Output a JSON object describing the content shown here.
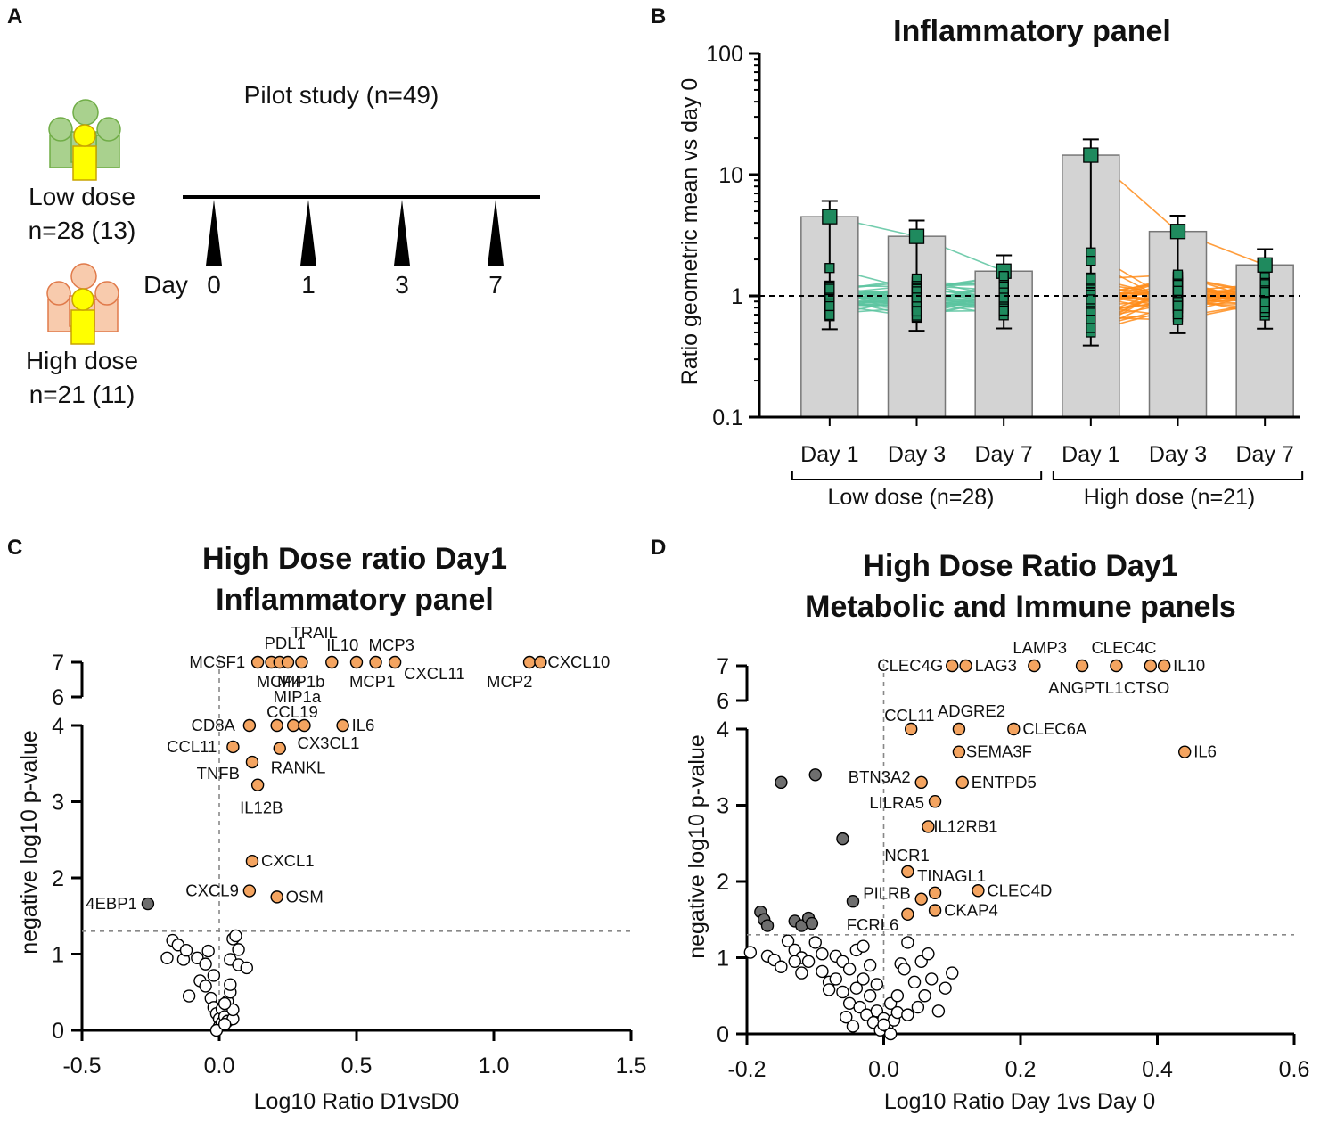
{
  "panel_letters": [
    "A",
    "B",
    "C",
    "D"
  ],
  "panel_a": {
    "title": "Pilot study (n=49)",
    "low_dose": {
      "label": "Low dose",
      "n": "n=28 (13)"
    },
    "high_dose": {
      "label": "High dose",
      "n": "n=21 (11)"
    },
    "day_label": "Day",
    "days": [
      "0",
      "1",
      "3",
      "7"
    ],
    "colors": {
      "low": "#a9d18e",
      "low_stroke": "#70ad47",
      "high": "#f8cbad",
      "high_stroke": "#e07a4a",
      "center": "#ffff00",
      "center_stroke": "#c9a400"
    }
  },
  "chart_data": [
    {
      "id": "B",
      "type": "bar",
      "title": "Inflammatory panel",
      "ylabel": "Ratio geometric mean vs day 0",
      "yscale": "log",
      "ylim": [
        0.1,
        100
      ],
      "yticks": [
        "0.1",
        "1",
        "10",
        "100"
      ],
      "reference_line": 1,
      "categories": [
        "Day 1",
        "Day 3",
        "Day 7",
        "Day 1",
        "Day 3",
        "Day 7"
      ],
      "groups": [
        {
          "label": "Low dose (n=28)",
          "line_color": "#5cc4a0"
        },
        {
          "label": "High dose (n=21)",
          "line_color": "#ff8c1a"
        }
      ],
      "bar_values": [
        4.5,
        3.1,
        1.6,
        14.5,
        3.4,
        1.8
      ],
      "marker_color": "#1f8a5e",
      "bar_color": "#d3d3d3"
    },
    {
      "id": "C",
      "type": "scatter",
      "title": [
        "High Dose ratio Day1",
        "Inflammatory panel"
      ],
      "xlabel": "Log10 Ratio D1vsD0",
      "ylabel": "negative log10 p-value",
      "xlim": [
        -0.5,
        1.5
      ],
      "xticks": [
        "-0.5",
        "0.0",
        "0.5",
        "1.0",
        "1.5"
      ],
      "yticks": [
        "0",
        "1",
        "2",
        "3",
        "4",
        "6",
        "7"
      ],
      "threshold_p": 1.3,
      "colors": {
        "up": "#f4a460",
        "down": "#6e6e6e",
        "ns": "#ffffff"
      },
      "labeled_points": [
        {
          "name": "MCSF1",
          "x": 0.14,
          "y": 7
        },
        {
          "name": "PDL1",
          "x": 0.19,
          "y": 7
        },
        {
          "name": "TRAIL",
          "x": 0.3,
          "y": 7
        },
        {
          "name": "IL10",
          "x": 0.41,
          "y": 7
        },
        {
          "name": "MCP3",
          "x": 0.57,
          "y": 7
        },
        {
          "name": "MCP4",
          "x": 0.22,
          "y": 7
        },
        {
          "name": "MIP1b",
          "x": 0.25,
          "y": 7
        },
        {
          "name": "MCP1",
          "x": 0.5,
          "y": 7
        },
        {
          "name": "CXCL11",
          "x": 0.64,
          "y": 7
        },
        {
          "name": "MCP2",
          "x": 1.13,
          "y": 7
        },
        {
          "name": "CXCL10",
          "x": 1.17,
          "y": 7
        },
        {
          "name": "CD8A",
          "x": 0.11,
          "y": 4.0
        },
        {
          "name": "MIP1a",
          "x": 0.21,
          "y": 4.0
        },
        {
          "name": "CCL19",
          "x": 0.27,
          "y": 4.0
        },
        {
          "name": "IL6",
          "x": 0.45,
          "y": 4.0
        },
        {
          "name": "CX3CL1",
          "x": 0.31,
          "y": 4.0
        },
        {
          "name": "CCL11",
          "x": 0.05,
          "y": 3.72
        },
        {
          "name": "RANKL",
          "x": 0.22,
          "y": 3.7
        },
        {
          "name": "TNFB",
          "x": 0.12,
          "y": 3.52
        },
        {
          "name": "IL12B",
          "x": 0.14,
          "y": 3.22
        },
        {
          "name": "CXCL1",
          "x": 0.12,
          "y": 2.22
        },
        {
          "name": "CXCL9",
          "x": 0.11,
          "y": 1.83
        },
        {
          "name": "OSM",
          "x": 0.21,
          "y": 1.75
        },
        {
          "name": "4EBP1",
          "x": -0.26,
          "y": 1.66
        }
      ],
      "unlabeled_points": [
        {
          "x": -0.19,
          "y": 0.95
        },
        {
          "x": -0.17,
          "y": 1.18
        },
        {
          "x": -0.15,
          "y": 1.12
        },
        {
          "x": -0.13,
          "y": 0.93
        },
        {
          "x": -0.12,
          "y": 1.05
        },
        {
          "x": -0.08,
          "y": 0.95
        },
        {
          "x": -0.05,
          "y": 0.87
        },
        {
          "x": -0.04,
          "y": 1.04
        },
        {
          "x": -0.11,
          "y": 0.45
        },
        {
          "x": -0.07,
          "y": 0.65
        },
        {
          "x": -0.05,
          "y": 0.58
        },
        {
          "x": -0.02,
          "y": 0.72
        },
        {
          "x": -0.03,
          "y": 0.42
        },
        {
          "x": -0.02,
          "y": 0.3
        },
        {
          "x": -0.01,
          "y": 0.22
        },
        {
          "x": 0.0,
          "y": 0.15
        },
        {
          "x": 0.0,
          "y": 0.05
        },
        {
          "x": 0.01,
          "y": 0.1
        },
        {
          "x": 0.01,
          "y": 0.28
        },
        {
          "x": 0.02,
          "y": 0.18
        },
        {
          "x": 0.03,
          "y": 0.12
        },
        {
          "x": 0.03,
          "y": 0.38
        },
        {
          "x": 0.04,
          "y": 0.5
        },
        {
          "x": 0.04,
          "y": 0.6
        },
        {
          "x": 0.05,
          "y": 0.15
        },
        {
          "x": 0.05,
          "y": 0.27
        },
        {
          "x": 0.04,
          "y": 0.93
        },
        {
          "x": 0.05,
          "y": 1.2
        },
        {
          "x": 0.06,
          "y": 1.24
        },
        {
          "x": 0.07,
          "y": 1.06
        },
        {
          "x": 0.07,
          "y": 0.86
        },
        {
          "x": 0.1,
          "y": 0.82
        },
        {
          "x": 0.02,
          "y": 0.35
        },
        {
          "x": -0.01,
          "y": 0.0
        },
        {
          "x": 0.02,
          "y": 0.08
        }
      ]
    },
    {
      "id": "D",
      "type": "scatter",
      "title": [
        "High Dose Ratio Day1",
        "Metabolic and Immune panels"
      ],
      "xlabel": "Log10 Ratio Day 1vs Day 0",
      "ylabel": "negative log10 p-value",
      "xlim": [
        -0.2,
        0.6
      ],
      "xticks": [
        "-0.2",
        "0.0",
        "0.2",
        "0.4",
        "0.6"
      ],
      "yticks": [
        "0",
        "1",
        "2",
        "3",
        "4",
        "6",
        "7"
      ],
      "threshold_p": 1.3,
      "colors": {
        "up": "#f4a460",
        "down": "#6e6e6e",
        "ns": "#ffffff"
      },
      "labeled_points": [
        {
          "name": "CLEC4G",
          "x": 0.1,
          "y": 7
        },
        {
          "name": "LAG3",
          "x": 0.12,
          "y": 7
        },
        {
          "name": "LAMP3",
          "x": 0.22,
          "y": 7
        },
        {
          "name": "CLEC4C",
          "x": 0.34,
          "y": 7
        },
        {
          "name": "ANGPTL1",
          "x": 0.29,
          "y": 7
        },
        {
          "name": "CTSO",
          "x": 0.39,
          "y": 7
        },
        {
          "name": "IL10",
          "x": 0.41,
          "y": 7
        },
        {
          "name": "CCL11",
          "x": 0.04,
          "y": 4.0
        },
        {
          "name": "ADGRE2",
          "x": 0.11,
          "y": 4.0
        },
        {
          "name": "CLEC6A",
          "x": 0.19,
          "y": 4.0
        },
        {
          "name": "IL6",
          "x": 0.44,
          "y": 3.7
        },
        {
          "name": "SEMA3F",
          "x": 0.11,
          "y": 3.7
        },
        {
          "name": "BTN3A2",
          "x": 0.055,
          "y": 3.3
        },
        {
          "name": "ENTPD5",
          "x": 0.115,
          "y": 3.3
        },
        {
          "name": "LILRA5",
          "x": 0.075,
          "y": 3.05
        },
        {
          "name": "IL12RB1",
          "x": 0.065,
          "y": 2.72
        },
        {
          "name": "NCR1",
          "x": 0.035,
          "y": 2.13
        },
        {
          "name": "TINAGL1",
          "x": 0.075,
          "y": 1.85
        },
        {
          "name": "CLEC4D",
          "x": 0.138,
          "y": 1.88
        },
        {
          "name": "PILRB",
          "x": 0.055,
          "y": 1.77
        },
        {
          "name": "CKAP4",
          "x": 0.075,
          "y": 1.62
        },
        {
          "name": "FCRL6",
          "x": 0.035,
          "y": 1.57
        }
      ],
      "down_points": [
        {
          "x": -0.15,
          "y": 3.3
        },
        {
          "x": -0.1,
          "y": 3.4
        },
        {
          "x": -0.06,
          "y": 2.56
        },
        {
          "x": -0.045,
          "y": 1.74
        },
        {
          "x": -0.18,
          "y": 1.6
        },
        {
          "x": -0.175,
          "y": 1.5
        },
        {
          "x": -0.17,
          "y": 1.42
        },
        {
          "x": -0.13,
          "y": 1.48
        },
        {
          "x": -0.12,
          "y": 1.42
        },
        {
          "x": -0.11,
          "y": 1.52
        },
        {
          "x": -0.105,
          "y": 1.45
        }
      ],
      "unlabeled_points": [
        {
          "x": -0.195,
          "y": 1.07
        },
        {
          "x": -0.17,
          "y": 1.02
        },
        {
          "x": -0.16,
          "y": 0.97
        },
        {
          "x": -0.15,
          "y": 0.88
        },
        {
          "x": -0.14,
          "y": 1.22
        },
        {
          "x": -0.13,
          "y": 1.1
        },
        {
          "x": -0.12,
          "y": 1.0
        },
        {
          "x": -0.11,
          "y": 0.95
        },
        {
          "x": -0.1,
          "y": 1.2
        },
        {
          "x": -0.09,
          "y": 1.05
        },
        {
          "x": -0.09,
          "y": 0.82
        },
        {
          "x": -0.08,
          "y": 0.68
        },
        {
          "x": -0.07,
          "y": 1.02
        },
        {
          "x": -0.07,
          "y": 0.72
        },
        {
          "x": -0.06,
          "y": 0.95
        },
        {
          "x": -0.06,
          "y": 0.55
        },
        {
          "x": -0.05,
          "y": 0.4
        },
        {
          "x": -0.05,
          "y": 0.85
        },
        {
          "x": -0.04,
          "y": 1.1
        },
        {
          "x": -0.04,
          "y": 0.6
        },
        {
          "x": -0.035,
          "y": 0.35
        },
        {
          "x": -0.03,
          "y": 0.72
        },
        {
          "x": -0.03,
          "y": 1.15
        },
        {
          "x": -0.025,
          "y": 0.25
        },
        {
          "x": -0.02,
          "y": 0.5
        },
        {
          "x": -0.02,
          "y": 0.9
        },
        {
          "x": -0.015,
          "y": 0.15
        },
        {
          "x": -0.01,
          "y": 0.3
        },
        {
          "x": -0.01,
          "y": 0.65
        },
        {
          "x": -0.005,
          "y": 0.05
        },
        {
          "x": 0.0,
          "y": 0.2
        },
        {
          "x": 0.005,
          "y": 0.1
        },
        {
          "x": 0.01,
          "y": 0.4
        },
        {
          "x": 0.01,
          "y": 0.0
        },
        {
          "x": 0.015,
          "y": 0.18
        },
        {
          "x": 0.02,
          "y": 0.5
        },
        {
          "x": 0.02,
          "y": 0.28
        },
        {
          "x": 0.025,
          "y": 0.92
        },
        {
          "x": 0.03,
          "y": 0.85
        },
        {
          "x": 0.035,
          "y": 0.25
        },
        {
          "x": 0.035,
          "y": 1.2
        },
        {
          "x": 0.045,
          "y": 0.68
        },
        {
          "x": 0.05,
          "y": 0.35
        },
        {
          "x": 0.055,
          "y": 0.95
        },
        {
          "x": 0.06,
          "y": 0.5
        },
        {
          "x": 0.065,
          "y": 1.05
        },
        {
          "x": 0.07,
          "y": 0.72
        },
        {
          "x": 0.08,
          "y": 0.3
        },
        {
          "x": 0.09,
          "y": 0.6
        },
        {
          "x": 0.1,
          "y": 0.8
        },
        {
          "x": -0.12,
          "y": 0.8
        },
        {
          "x": -0.13,
          "y": 0.95
        },
        {
          "x": -0.08,
          "y": 0.58
        },
        {
          "x": -0.055,
          "y": 0.22
        },
        {
          "x": -0.045,
          "y": 0.1
        },
        {
          "x": 0.0,
          "y": 0.12
        }
      ]
    }
  ]
}
